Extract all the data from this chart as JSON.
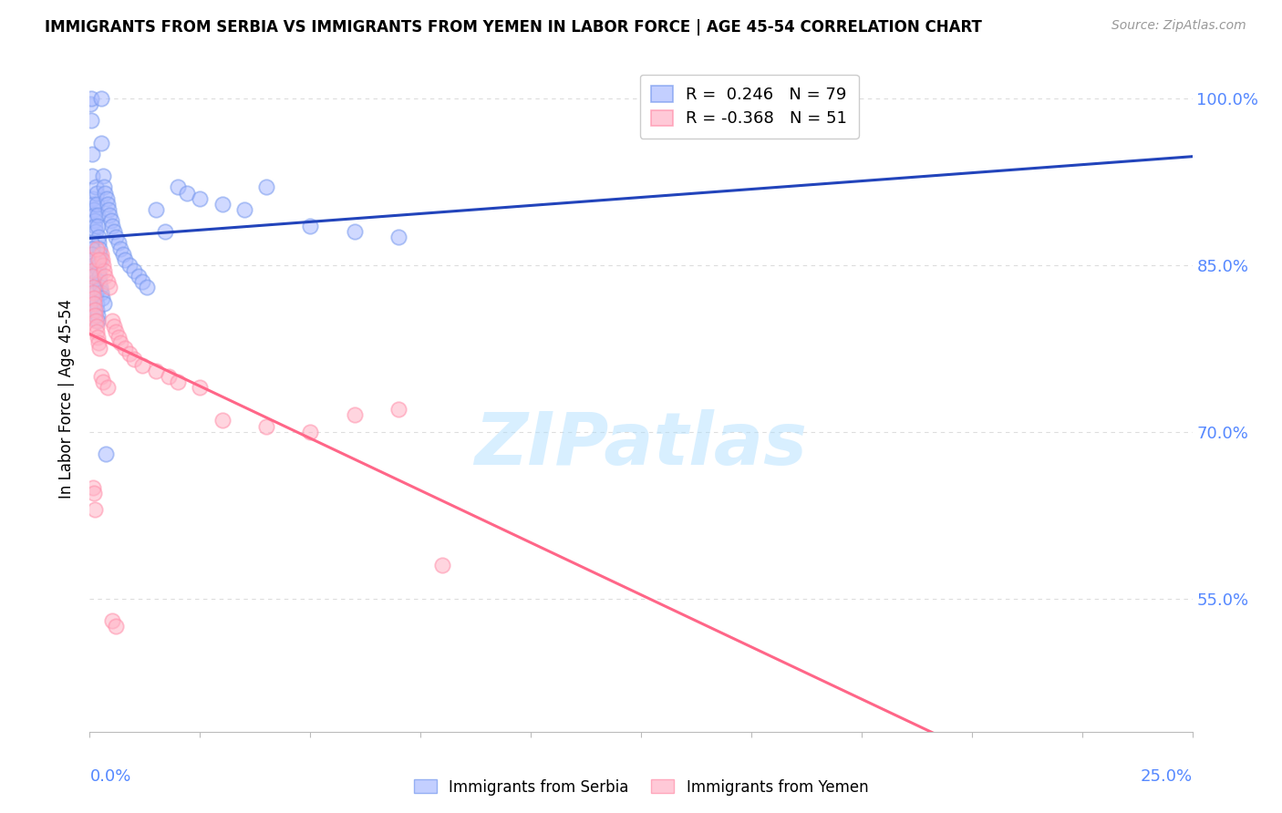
{
  "title": "IMMIGRANTS FROM SERBIA VS IMMIGRANTS FROM YEMEN IN LABOR FORCE | AGE 45-54 CORRELATION CHART",
  "source": "Source: ZipAtlas.com",
  "ylabel": "In Labor Force | Age 45-54",
  "xlim": [
    0.0,
    25.0
  ],
  "ylim": [
    43.0,
    103.0
  ],
  "right_yticks": [
    55.0,
    70.0,
    85.0,
    100.0
  ],
  "serbia_R": "0.246",
  "serbia_N": 79,
  "yemen_R": "-0.368",
  "yemen_N": 51,
  "serbia_face_color": "#AABBFF",
  "serbia_edge_color": "#7799EE",
  "serbia_line_color": "#2244BB",
  "yemen_face_color": "#FFB3C6",
  "yemen_edge_color": "#FF8FAA",
  "yemen_line_color": "#FF6688",
  "axis_label_color": "#5588FF",
  "watermark": "ZIPatlas",
  "background_color": "#FFFFFF",
  "grid_color": "#DDDDDD",
  "serbia_x": [
    0.02,
    0.03,
    0.04,
    0.05,
    0.06,
    0.07,
    0.08,
    0.09,
    0.1,
    0.11,
    0.12,
    0.13,
    0.14,
    0.15,
    0.16,
    0.17,
    0.18,
    0.19,
    0.2,
    0.21,
    0.22,
    0.23,
    0.25,
    0.27,
    0.3,
    0.33,
    0.35,
    0.38,
    0.4,
    0.43,
    0.45,
    0.48,
    0.5,
    0.55,
    0.6,
    0.65,
    0.7,
    0.75,
    0.8,
    0.9,
    1.0,
    1.1,
    1.2,
    1.3,
    1.5,
    1.7,
    2.0,
    2.2,
    2.5,
    3.0,
    3.5,
    4.0,
    5.0,
    6.0,
    7.0,
    0.04,
    0.05,
    0.06,
    0.07,
    0.08,
    0.09,
    0.1,
    0.11,
    0.12,
    0.13,
    0.14,
    0.15,
    0.16,
    0.17,
    0.18,
    0.19,
    0.2,
    0.21,
    0.22,
    0.23,
    0.25,
    0.28,
    0.32,
    0.36
  ],
  "serbia_y": [
    99.5,
    100.0,
    98.0,
    95.0,
    93.0,
    91.0,
    90.5,
    90.0,
    89.5,
    89.0,
    88.5,
    88.0,
    92.0,
    91.5,
    90.5,
    89.5,
    88.5,
    87.5,
    87.0,
    86.5,
    86.0,
    85.5,
    100.0,
    96.0,
    93.0,
    92.0,
    91.5,
    91.0,
    90.5,
    90.0,
    89.5,
    89.0,
    88.5,
    88.0,
    87.5,
    87.0,
    86.5,
    86.0,
    85.5,
    85.0,
    84.5,
    84.0,
    83.5,
    83.0,
    90.0,
    88.0,
    92.0,
    91.5,
    91.0,
    90.5,
    90.0,
    92.0,
    88.5,
    88.0,
    87.5,
    87.0,
    86.5,
    86.0,
    85.5,
    85.0,
    84.5,
    84.0,
    83.5,
    83.0,
    82.5,
    82.0,
    81.5,
    81.0,
    80.5,
    80.0,
    85.0,
    84.5,
    84.0,
    83.5,
    83.0,
    82.5,
    82.0,
    81.5,
    68.0
  ],
  "yemen_x": [
    0.04,
    0.05,
    0.06,
    0.07,
    0.08,
    0.09,
    0.1,
    0.11,
    0.12,
    0.13,
    0.15,
    0.16,
    0.18,
    0.2,
    0.22,
    0.25,
    0.28,
    0.3,
    0.33,
    0.35,
    0.4,
    0.45,
    0.5,
    0.55,
    0.6,
    0.65,
    0.7,
    0.8,
    0.9,
    1.0,
    1.2,
    1.5,
    1.8,
    2.0,
    2.5,
    3.0,
    4.0,
    5.0,
    6.0,
    7.0,
    8.0,
    0.08,
    0.1,
    0.12,
    0.15,
    0.2,
    0.25,
    0.3,
    0.4,
    0.5,
    0.6
  ],
  "yemen_y": [
    85.5,
    84.5,
    84.0,
    83.0,
    82.5,
    82.0,
    81.5,
    81.0,
    80.5,
    80.0,
    79.5,
    79.0,
    78.5,
    78.0,
    77.5,
    86.0,
    85.5,
    85.0,
    84.5,
    84.0,
    83.5,
    83.0,
    80.0,
    79.5,
    79.0,
    78.5,
    78.0,
    77.5,
    77.0,
    76.5,
    76.0,
    75.5,
    75.0,
    74.5,
    74.0,
    71.0,
    70.5,
    70.0,
    71.5,
    72.0,
    58.0,
    65.0,
    64.5,
    63.0,
    86.5,
    85.5,
    75.0,
    74.5,
    74.0,
    53.0,
    52.5
  ]
}
